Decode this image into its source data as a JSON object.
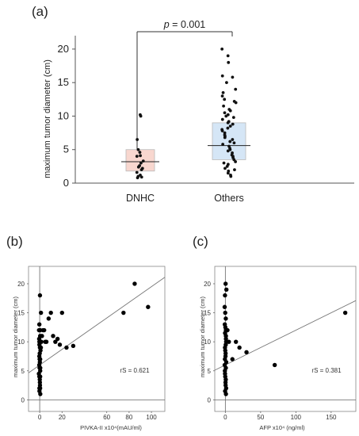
{
  "chart_data": [
    {
      "type": "box",
      "panel_label": "(a)",
      "ylabel": "maximum tumor diameter (cm)",
      "ylim": [
        0,
        22
      ],
      "yticks": [
        0,
        5,
        10,
        15,
        20
      ],
      "categories": [
        "DNHC",
        "Others"
      ],
      "annotation": {
        "p_symbol": "p",
        "p_rest": " = 0.001"
      },
      "colors": {
        "DNHC": "#f8d7cf",
        "Others": "#d5e6f6"
      },
      "boxes": [
        {
          "name": "DNHC",
          "q1": 1.8,
          "median": 3.2,
          "q3": 5.0,
          "points": [
            10.2,
            10.0,
            6.5,
            5.0,
            4.6,
            4.1,
            4.0,
            3.3,
            3.0,
            2.6,
            2.4,
            2.2,
            2.0,
            1.6,
            1.2,
            1.0,
            0.9,
            0.8
          ]
        },
        {
          "name": "Others",
          "q1": 3.5,
          "median": 5.6,
          "q3": 9.0,
          "points": [
            20.0,
            19.0,
            18.0,
            16.0,
            15.8,
            15.0,
            14.0,
            13.5,
            13.0,
            12.5,
            12.2,
            12.0,
            11.5,
            11.0,
            10.8,
            10.5,
            10.2,
            10.0,
            9.8,
            9.5,
            9.2,
            9.0,
            8.8,
            8.5,
            8.2,
            8.0,
            7.8,
            7.5,
            7.2,
            7.0,
            6.8,
            6.5,
            6.2,
            6.0,
            5.8,
            5.5,
            5.2,
            5.0,
            4.8,
            4.5,
            4.2,
            4.0,
            3.8,
            3.5,
            3.2,
            3.0,
            2.8,
            2.5,
            2.2,
            2.0,
            1.8,
            1.5,
            1.2,
            1.0
          ]
        }
      ]
    },
    {
      "type": "scatter",
      "panel_label": "(b)",
      "xlabel": "PIVKA-II x10⁴(mAU/ml)",
      "ylabel": "maximum tumor diameter (cm)",
      "xlim": [
        -10,
        112
      ],
      "ylim": [
        -2,
        23
      ],
      "xticks": [
        0,
        20,
        60,
        80,
        100
      ],
      "yticks": [
        0,
        5,
        10,
        15,
        20
      ],
      "annotation": "rS = 0.621",
      "fit_line": {
        "intercept": 6.0,
        "slope": 0.135
      },
      "points": [
        [
          0,
          18
        ],
        [
          0.5,
          15
        ],
        [
          0,
          13
        ],
        [
          0,
          12
        ],
        [
          1,
          12
        ],
        [
          0,
          11
        ],
        [
          0,
          10.5
        ],
        [
          0,
          10
        ],
        [
          1,
          10
        ],
        [
          0,
          9.5
        ],
        [
          0,
          9
        ],
        [
          0.5,
          9
        ],
        [
          0,
          8.5
        ],
        [
          0,
          8
        ],
        [
          0,
          7.5
        ],
        [
          0,
          7
        ],
        [
          0.5,
          7
        ],
        [
          0,
          6.5
        ],
        [
          0,
          6
        ],
        [
          0,
          5.5
        ],
        [
          0.5,
          5.5
        ],
        [
          0,
          5
        ],
        [
          0,
          4.5
        ],
        [
          0,
          4
        ],
        [
          0.5,
          4
        ],
        [
          0,
          3.5
        ],
        [
          0,
          3
        ],
        [
          0,
          2.5
        ],
        [
          0,
          2
        ],
        [
          0,
          1.5
        ],
        [
          0,
          1
        ],
        [
          0.5,
          2
        ],
        [
          2,
          11
        ],
        [
          3,
          12
        ],
        [
          4,
          12
        ],
        [
          5,
          10
        ],
        [
          6,
          10
        ],
        [
          8,
          14
        ],
        [
          10,
          15
        ],
        [
          12,
          11
        ],
        [
          14,
          10
        ],
        [
          16,
          10.5
        ],
        [
          18,
          9.5
        ],
        [
          20,
          15
        ],
        [
          24,
          9
        ],
        [
          30,
          9.3
        ],
        [
          75,
          15
        ],
        [
          85,
          20
        ],
        [
          97,
          16
        ]
      ]
    },
    {
      "type": "scatter",
      "panel_label": "(c)",
      "xlabel": "AFP x10⁴ (ng/ml)",
      "ylabel": "maximum tumor diameter (cm)",
      "xlim": [
        -15,
        185
      ],
      "ylim": [
        -2,
        23
      ],
      "xticks": [
        0,
        50,
        100,
        150
      ],
      "yticks": [
        0,
        5,
        10,
        15,
        20
      ],
      "annotation": "rS = 0.381",
      "fit_line": {
        "intercept": 6.0,
        "slope": 0.06
      },
      "points": [
        [
          0,
          20
        ],
        [
          0.5,
          19
        ],
        [
          0,
          18
        ],
        [
          0,
          16
        ],
        [
          0.5,
          15
        ],
        [
          0,
          14
        ],
        [
          0,
          13
        ],
        [
          0.5,
          12.5
        ],
        [
          0,
          12
        ],
        [
          0,
          11.5
        ],
        [
          0.5,
          11
        ],
        [
          0,
          10.5
        ],
        [
          0,
          10
        ],
        [
          0.5,
          9.5
        ],
        [
          0,
          9
        ],
        [
          0,
          8.5
        ],
        [
          0.5,
          8
        ],
        [
          0,
          7.5
        ],
        [
          0,
          7
        ],
        [
          0.5,
          6.5
        ],
        [
          0,
          6
        ],
        [
          0,
          5.5
        ],
        [
          0.5,
          5
        ],
        [
          0,
          4.5
        ],
        [
          0,
          4
        ],
        [
          0.5,
          3.5
        ],
        [
          0,
          3
        ],
        [
          0,
          2.5
        ],
        [
          0.5,
          2
        ],
        [
          0,
          1.5
        ],
        [
          0,
          1
        ],
        [
          3,
          12
        ],
        [
          5,
          10
        ],
        [
          10,
          7
        ],
        [
          15,
          10
        ],
        [
          20,
          9
        ],
        [
          30,
          8.2
        ],
        [
          70,
          6
        ],
        [
          170,
          15
        ]
      ]
    }
  ]
}
